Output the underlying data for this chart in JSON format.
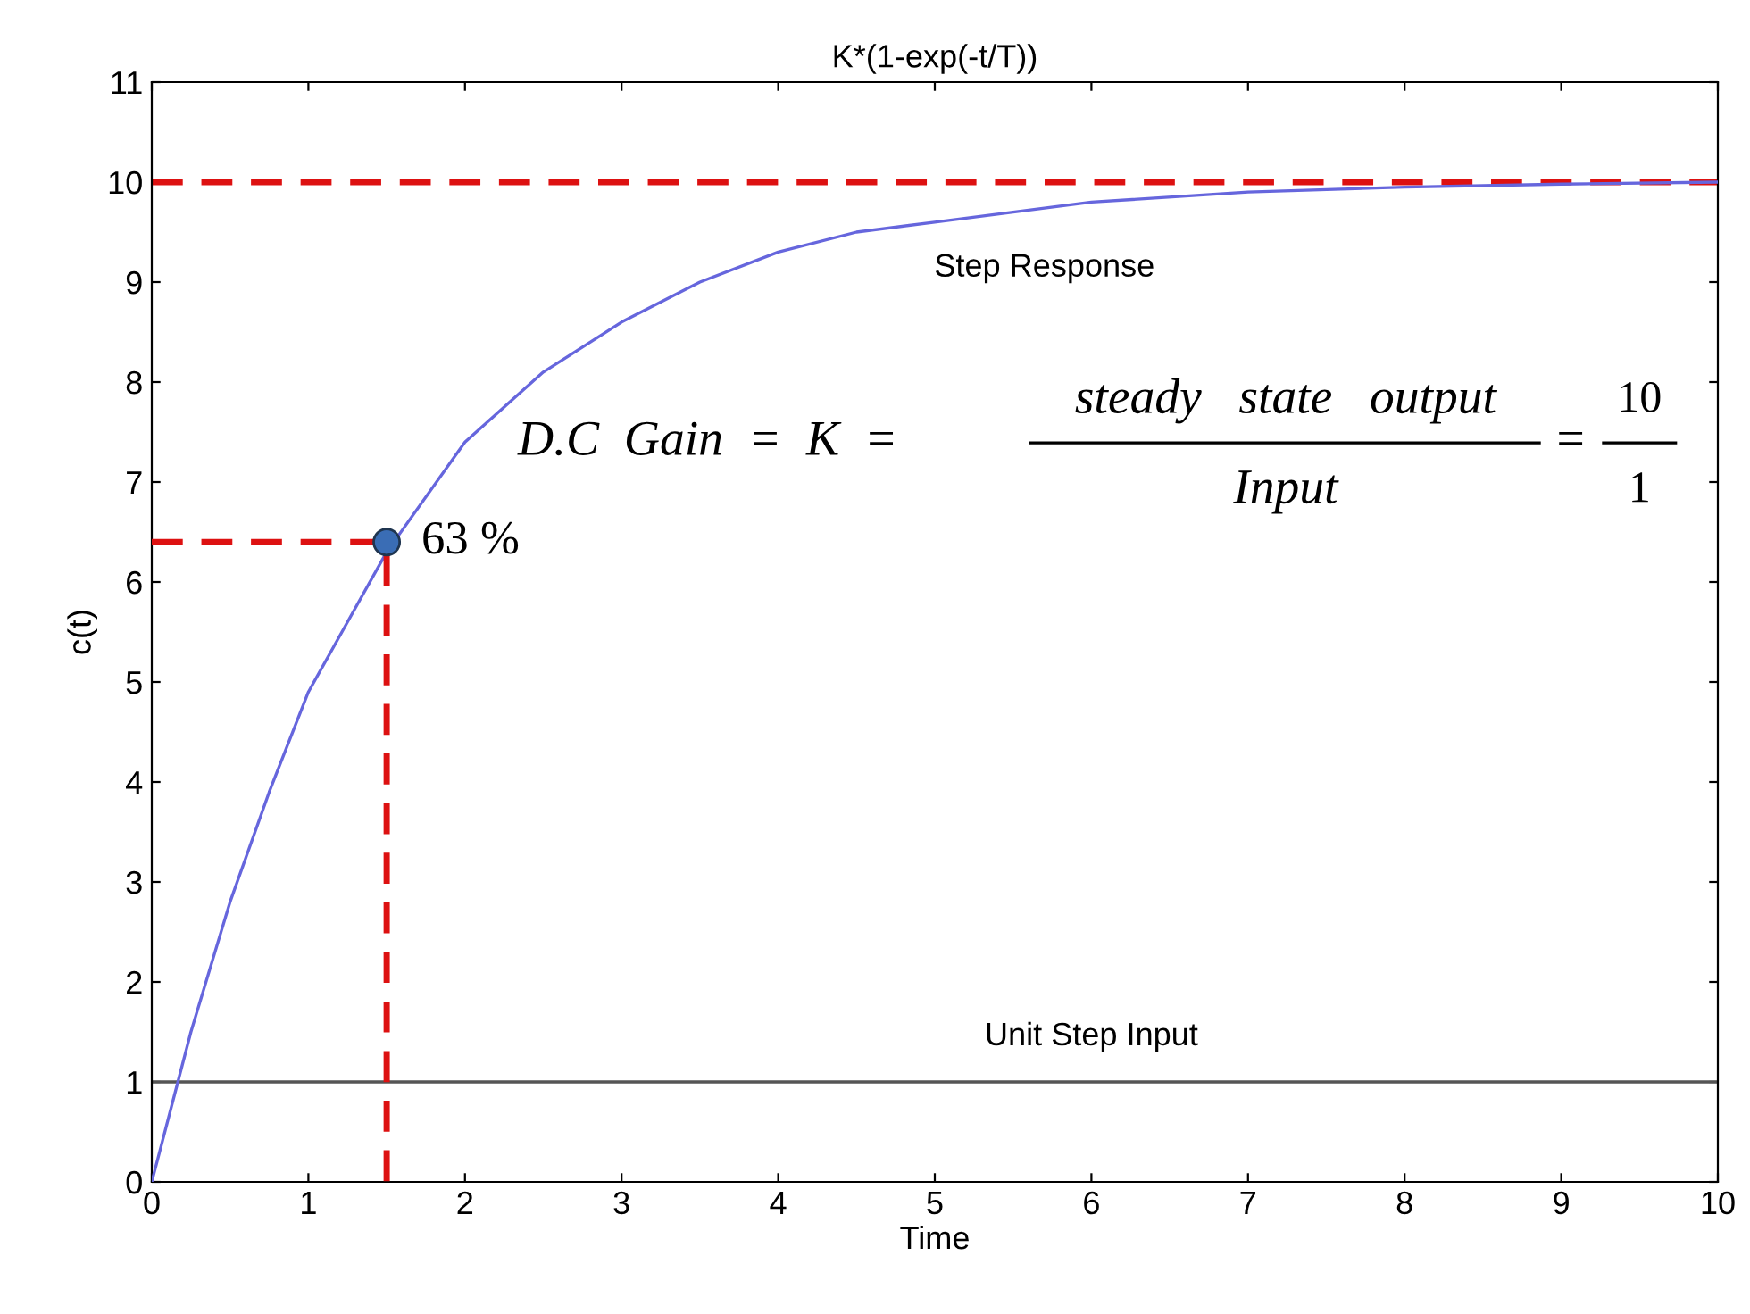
{
  "chart_data": {
    "type": "line",
    "title": "K*(1-exp(-t/T))",
    "xlabel": "Time",
    "ylabel": "c(t)",
    "xlim": [
      0,
      10
    ],
    "xticks": [
      0,
      1,
      2,
      3,
      4,
      5,
      6,
      7,
      8,
      9,
      10
    ],
    "ylim": [
      0,
      11
    ],
    "yticks": [
      0,
      1,
      2,
      3,
      4,
      5,
      6,
      7,
      8,
      9,
      10,
      11
    ],
    "grid": false,
    "legend": false,
    "series": [
      {
        "name": "Step Response",
        "color": "#6666dd",
        "line_style": "solid",
        "x": [
          0,
          0.25,
          0.5,
          0.75,
          1,
          1.25,
          1.5,
          2,
          2.5,
          3,
          3.5,
          4,
          4.5,
          5,
          6,
          7,
          8,
          9,
          10
        ],
        "values": [
          0,
          1.5,
          2.8,
          3.9,
          4.9,
          5.6,
          6.3,
          7.4,
          8.1,
          8.6,
          9.0,
          9.3,
          9.5,
          9.6,
          9.8,
          9.9,
          9.95,
          9.98,
          10
        ]
      },
      {
        "color": "#dd1111",
        "type": "line",
        "line_style": "dashed",
        "x": [
          0,
          1.5,
          1.5
        ],
        "values": [
          6.4,
          6.4,
          0
        ]
      },
      {
        "color": "#3a6db5",
        "type": "scatter",
        "marker": "circle",
        "x": [
          1.5
        ],
        "values": [
          6.4
        ]
      }
    ],
    "ref_lines": [
      {
        "axis": "y",
        "value": 10,
        "color": "#dd1111",
        "line_style": "dashed"
      },
      {
        "axis": "y",
        "value": 1,
        "label": "Unit Step Input",
        "color": "#555555",
        "line_style": "solid"
      }
    ],
    "annotations": [
      {
        "text": "63 %",
        "x": 1.5,
        "y": 6.4
      },
      "D.C  Gain  =  K  =",
      "steady   state   output",
      "Input",
      "=",
      "10",
      "1"
    ]
  }
}
